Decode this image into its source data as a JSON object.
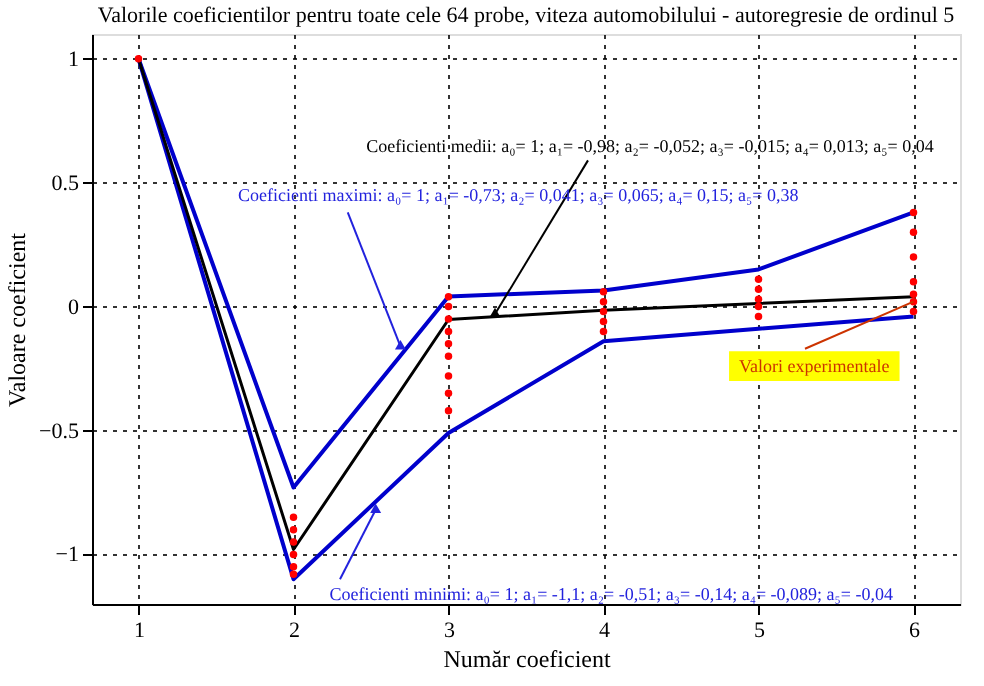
{
  "chart_data": {
    "type": "line",
    "title": "Valorile coeficientilor pentru toate cele 64 probe, viteza automobilului - autoregresie de ordinul 5",
    "xlabel": "Număr coeficient",
    "ylabel": "Valoare coeficient",
    "xlim": [
      0.7,
      6.3
    ],
    "xticks": [
      1,
      2,
      3,
      4,
      5,
      6
    ],
    "ylim": [
      -1.2,
      1.1
    ],
    "yticks": [
      -1,
      -0.5,
      0,
      0.5,
      1
    ],
    "grid": true,
    "legend": false,
    "line_style": "solid",
    "marker": "none",
    "series": [
      {
        "name": "Valori experimentale",
        "type": "scatter",
        "marker": "circle",
        "color": "#ff0000",
        "x": [
          1,
          2,
          2,
          2,
          2,
          2,
          2,
          3,
          3,
          3,
          3,
          3,
          3,
          3,
          3,
          3,
          4,
          4,
          4,
          4,
          4,
          5,
          5,
          5,
          5,
          5,
          6,
          6,
          6,
          6,
          6,
          6,
          6
        ],
        "values": [
          1,
          -0.85,
          -0.9,
          -0.95,
          -1.0,
          -1.05,
          -1.08,
          0.04,
          0.0,
          -0.05,
          -0.1,
          -0.15,
          -0.2,
          -0.28,
          -0.35,
          -0.42,
          0.06,
          0.02,
          -0.02,
          -0.06,
          -0.1,
          0.11,
          0.07,
          0.03,
          0.0,
          -0.04,
          0.38,
          0.3,
          0.2,
          0.1,
          0.05,
          0.02,
          -0.02
        ]
      },
      {
        "color": "#0000cc",
        "x": [
          1,
          2,
          3,
          4,
          5,
          6
        ],
        "values": [
          1,
          -0.73,
          0.041,
          0.065,
          0.15,
          0.38
        ]
      },
      {
        "color": "#0000cc",
        "x": [
          1,
          2,
          3,
          4,
          5,
          6
        ],
        "values": [
          1,
          -1.1,
          -0.51,
          -0.14,
          -0.089,
          -0.04
        ]
      },
      {
        "color": "#000000",
        "x": [
          1,
          2,
          3,
          4,
          5,
          6
        ],
        "values": [
          1,
          -0.98,
          -0.052,
          -0.015,
          0.013,
          0.04
        ]
      }
    ],
    "annotations": [
      {
        "text": "Coeficienti medii: a₀= 1; a₁= -0,98; a₂= -0,052; a₃= -0,015; a₄= 0,013; a₅= 0,04",
        "x": 3.3,
        "y": -0.03
      },
      {
        "text": "Coeficienti maximi: a₀= 1; a₁= -0,73; a₂= 0,041; a₃= 0,065; a₄= 0,15; a₅= 0,38",
        "x": 2.69,
        "y": -0.16
      },
      {
        "text": "Coeficienti minimi: a₀= 1; a₁= -1,1; a₂= -0,51; a₃= -0,14; a₄= -0,089; a₅= -0,04",
        "x": 2.53,
        "y": -0.82
      }
    ]
  }
}
